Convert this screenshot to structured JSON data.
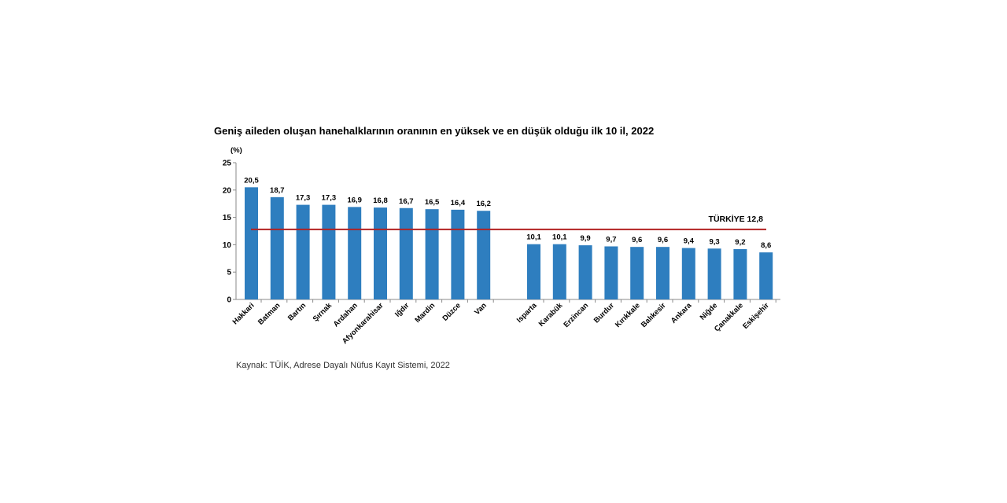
{
  "chart_data": {
    "type": "bar",
    "title": "Geniş aileden oluşan hanehalklarının oranının en yüksek ve en düşük olduğu ilk 10 il, 2022",
    "ylabel": "(%)",
    "xlabel": "",
    "ylim": [
      0,
      25
    ],
    "yticks": [
      0,
      5,
      10,
      15,
      20,
      25
    ],
    "grid": false,
    "bar_color": "#2e7ebf",
    "reference_line_color": "#b22222",
    "groups": [
      {
        "name": "highest",
        "categories": [
          "Hakkari",
          "Batman",
          "Bartın",
          "Şırnak",
          "Ardahan",
          "Afyonkarahisar",
          "Iğdır",
          "Mardin",
          "Düzce",
          "Van"
        ],
        "values": [
          20.5,
          18.7,
          17.3,
          17.3,
          16.9,
          16.8,
          16.7,
          16.5,
          16.4,
          16.2
        ],
        "labels": [
          "20,5",
          "18,7",
          "17,3",
          "17,3",
          "16,9",
          "16,8",
          "16,7",
          "16,5",
          "16,4",
          "16,2"
        ]
      },
      {
        "name": "lowest",
        "categories": [
          "Isparta",
          "Karabük",
          "Erzincan",
          "Burdur",
          "Kırıkkale",
          "Balıkesir",
          "Ankara",
          "Niğde",
          "Çanakkale",
          "Eskişehir"
        ],
        "values": [
          10.1,
          10.1,
          9.9,
          9.7,
          9.6,
          9.6,
          9.4,
          9.3,
          9.2,
          8.6
        ],
        "labels": [
          "10,1",
          "10,1",
          "9,9",
          "9,7",
          "9,6",
          "9,6",
          "9,4",
          "9,3",
          "9,2",
          "8,6"
        ]
      }
    ],
    "reference_line": {
      "value": 12.8,
      "label": "TÜRKİYE  12,8"
    },
    "source": "Kaynak: TÜİK, Adrese Dayalı Nüfus Kayıt Sistemi, 2022"
  }
}
